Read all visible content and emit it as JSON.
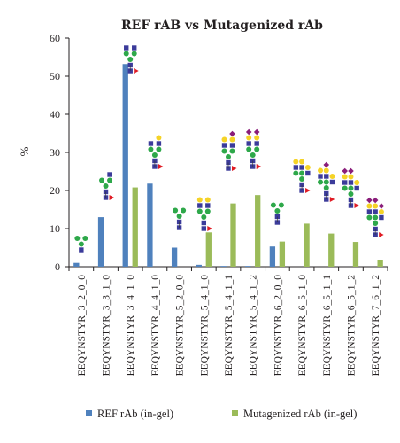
{
  "chart_data": {
    "type": "bar",
    "title": "REF rAB vs Mutagenized rAb",
    "ylabel": "%",
    "xlabel": "",
    "ylim": [
      0,
      60
    ],
    "yticks": [
      0,
      10,
      20,
      30,
      40,
      50,
      60
    ],
    "grid": false,
    "legend_position": "bottom",
    "categories": [
      "EEQYNSTYR_3_2_0_0",
      "EEQYNSTYR_3_3_1_0",
      "EEQYNSTYR_3_4_1_0",
      "EEQYNSTYR_4_4_1_0",
      "EEQYNSTYR_5_2_0_0",
      "EEQYNSTYR_5_4_1_0",
      "EEQYNSTYR_5_4_1_1",
      "EEQYNSTYR_5_4_1_2",
      "EEQYNSTYR_6_2_0_0",
      "EEQYNSTYR_6_5_1_0",
      "EEQYNSTYR_6_5_1_1",
      "EEQYNSTYR_6_5_1_2",
      "EEQYNSTYR_7_6_1_2"
    ],
    "series": [
      {
        "name": "REF rAb (in-gel)",
        "color": "#4f81bd",
        "values": [
          1.0,
          13.0,
          53.2,
          21.8,
          5.0,
          0.5,
          0.2,
          0.2,
          5.3,
          0,
          0,
          0,
          0
        ]
      },
      {
        "name": "Mutagenized rAb (in-gel)",
        "color": "#9bbb59",
        "values": [
          0,
          0,
          20.8,
          0,
          0,
          9.0,
          16.6,
          18.8,
          6.6,
          11.3,
          8.7,
          6.5,
          1.8
        ]
      }
    ],
    "glycan_icons": [
      "glycan-3-2-0-0",
      "glycan-3-3-1-0",
      "glycan-3-4-1-0",
      "glycan-4-4-1-0",
      "glycan-5-2-0-0",
      "glycan-5-4-1-0",
      "glycan-5-4-1-1",
      "glycan-5-4-1-2",
      "glycan-6-2-0-0",
      "glycan-6-5-1-0",
      "glycan-6-5-1-1",
      "glycan-6-5-1-2",
      "glycan-7-6-1-2"
    ]
  },
  "colors": {
    "glcnac": "#3b3b9a",
    "mannose": "#2ea84a",
    "galactose": "#f5d327",
    "fucose": "#e01b24",
    "sialic": "#8a1d7a",
    "axis": "#231f20"
  }
}
